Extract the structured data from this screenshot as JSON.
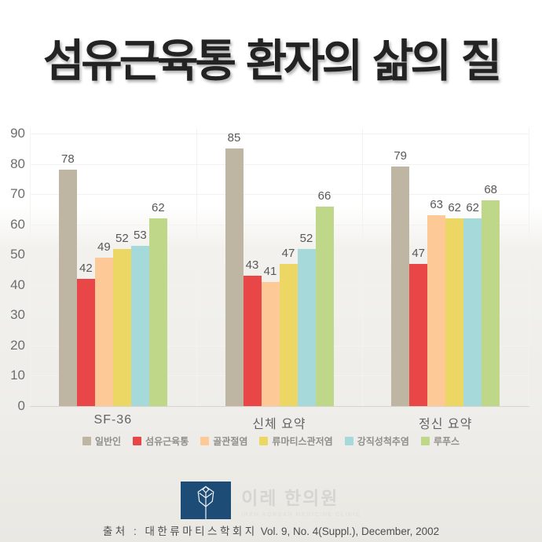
{
  "title": "섬유근육통 환자의 삶의 질",
  "chart_data": {
    "type": "bar",
    "title": "섬유근육통 환자의 삶의 질",
    "categories": [
      "SF-36",
      "신체 요약",
      "정신 요약"
    ],
    "series": [
      {
        "name": "일반인",
        "color": "#beb5a2",
        "values": [
          78,
          85,
          79
        ]
      },
      {
        "name": "섬유근육통",
        "color": "#e94747",
        "values": [
          42,
          43,
          47
        ]
      },
      {
        "name": "골관절염",
        "color": "#fcc997",
        "values": [
          49,
          41,
          63
        ]
      },
      {
        "name": "류마티스관저염",
        "color": "#ecd765",
        "values": [
          52,
          47,
          62
        ]
      },
      {
        "name": "강직성척추염",
        "color": "#a6d9da",
        "values": [
          53,
          52,
          62
        ]
      },
      {
        "name": "루푸스",
        "color": "#bfd789",
        "values": [
          62,
          66,
          68
        ]
      }
    ],
    "ylim": [
      0,
      90
    ],
    "ytick_step": 10,
    "grid": true,
    "legend_position": "bottom",
    "xlabel": "",
    "ylabel": ""
  },
  "footer": {
    "logo_korean": "이레 한의원",
    "logo_english": "IREH KOREAN MEDICINE CLINIC",
    "logo_color": "#1d4d77",
    "source_korean": "출처 : 대한류마티스학회지",
    "source_latin": "Vol. 9, No. 4(Suppl.), December, 2002"
  },
  "colors": {
    "background_top": "#ffffff",
    "background_bottom": "#e9e8e3",
    "axis_line": "#d8d5cf",
    "grid_line": "#f3f2ee",
    "tick_label_text": "#6e6e6e",
    "value_label_text": "#58585a"
  }
}
